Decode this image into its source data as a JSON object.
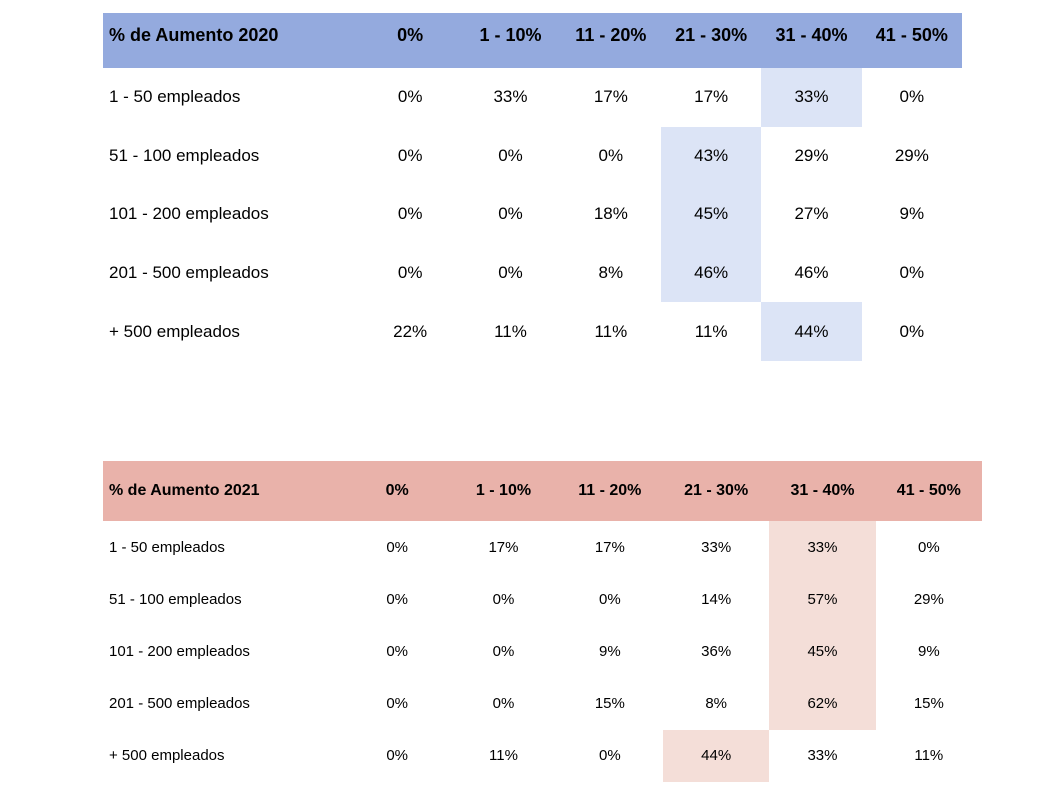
{
  "page": {
    "background": "#ffffff",
    "text_color": "#000000"
  },
  "chart_data": [
    {
      "type": "table",
      "title": "% de Aumento 2020",
      "columns": [
        "0%",
        "1 - 10%",
        "11 - 20%",
        "21 - 30%",
        "31 - 40%",
        "41 - 50%"
      ],
      "rows": [
        {
          "label": "1 - 50 empleados",
          "values": [
            "0%",
            "33%",
            "17%",
            "17%",
            "33%",
            "0%"
          ],
          "highlight_col": 4
        },
        {
          "label": "51 - 100 empleados",
          "values": [
            "0%",
            "0%",
            "0%",
            "43%",
            "29%",
            "29%"
          ],
          "highlight_col": 3
        },
        {
          "label": "101 - 200 empleados",
          "values": [
            "0%",
            "0%",
            "18%",
            "45%",
            "27%",
            "9%"
          ],
          "highlight_col": 3
        },
        {
          "label": "201 - 500 empleados",
          "values": [
            "0%",
            "0%",
            "8%",
            "46%",
            "46%",
            "0%"
          ],
          "highlight_col": 3
        },
        {
          "label": "+ 500 empleados",
          "values": [
            "22%",
            "11%",
            "11%",
            "11%",
            "44%",
            "0%"
          ],
          "highlight_col": 4
        }
      ],
      "style": {
        "header_bg": "#94aade",
        "highlight_bg": "#dce4f6"
      }
    },
    {
      "type": "table",
      "title": "% de Aumento 2021",
      "columns": [
        "0%",
        "1 - 10%",
        "11 - 20%",
        "21 - 30%",
        "31 - 40%",
        "41 - 50%"
      ],
      "rows": [
        {
          "label": "1 - 50 empleados",
          "values": [
            "0%",
            "17%",
            "17%",
            "33%",
            "33%",
            "0%"
          ],
          "highlight_col": 4
        },
        {
          "label": "51 - 100 empleados",
          "values": [
            "0%",
            "0%",
            "0%",
            "14%",
            "57%",
            "29%"
          ],
          "highlight_col": 4
        },
        {
          "label": "101 - 200 empleados",
          "values": [
            "0%",
            "0%",
            "9%",
            "36%",
            "45%",
            "9%"
          ],
          "highlight_col": 4
        },
        {
          "label": "201 - 500 empleados",
          "values": [
            "0%",
            "0%",
            "15%",
            "8%",
            "62%",
            "15%"
          ],
          "highlight_col": 4
        },
        {
          "label": "+ 500 empleados",
          "values": [
            "0%",
            "11%",
            "0%",
            "44%",
            "33%",
            "11%"
          ],
          "highlight_col": 3
        }
      ],
      "style": {
        "header_bg": "#e9b2aa",
        "highlight_bg": "#f4ded8"
      }
    }
  ]
}
